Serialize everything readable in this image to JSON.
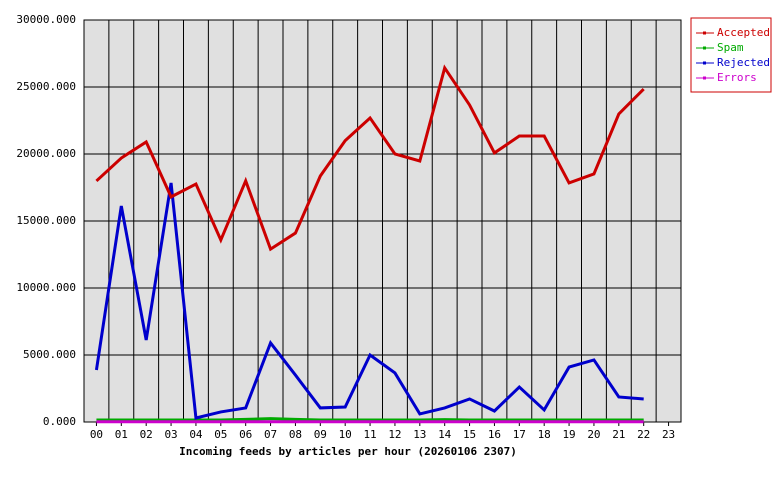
{
  "chart_data": {
    "type": "line",
    "xlabel": "Incoming feeds by articles per hour (20260106 2307)",
    "categories": [
      "00",
      "01",
      "02",
      "03",
      "04",
      "05",
      "06",
      "07",
      "08",
      "09",
      "10",
      "11",
      "12",
      "13",
      "14",
      "15",
      "16",
      "17",
      "18",
      "19",
      "20",
      "21",
      "22",
      "23"
    ],
    "series": [
      {
        "name": "Accepted",
        "color": "#cc0000",
        "values": [
          17990,
          19700,
          20900,
          16800,
          17760,
          13580,
          18000,
          12900,
          14100,
          18360,
          21000,
          22690,
          20000,
          19480,
          26420,
          23660,
          20080,
          21340,
          21340,
          17840,
          18510,
          22990,
          24850,
          null
        ]
      },
      {
        "name": "Spam",
        "color": "#00aa00",
        "values": [
          150,
          150,
          150,
          150,
          150,
          150,
          200,
          250,
          200,
          150,
          150,
          150,
          150,
          150,
          180,
          150,
          150,
          150,
          150,
          150,
          150,
          150,
          150,
          null
        ]
      },
      {
        "name": "Rejected",
        "color": "#0000cc",
        "values": [
          3880,
          16120,
          6120,
          17840,
          300,
          750,
          1050,
          5900,
          3500,
          1050,
          1120,
          5000,
          3660,
          600,
          1050,
          1720,
          820,
          2610,
          900,
          4100,
          4630,
          1870,
          1720,
          null
        ]
      },
      {
        "name": "Errors",
        "color": "#cc00cc",
        "values": [
          20,
          20,
          20,
          20,
          20,
          20,
          20,
          20,
          20,
          20,
          20,
          20,
          20,
          20,
          20,
          20,
          20,
          20,
          20,
          20,
          20,
          20,
          20,
          null
        ]
      }
    ],
    "ylim": [
      0,
      30000
    ],
    "yticks": [
      {
        "value": 0,
        "label": "0.000"
      },
      {
        "value": 5000,
        "label": "5000.000"
      },
      {
        "value": 10000,
        "label": "10000.000"
      },
      {
        "value": 15000,
        "label": "15000.000"
      },
      {
        "value": 20000,
        "label": "20000.000"
      },
      {
        "value": 25000,
        "label": "25000.000"
      },
      {
        "value": 30000,
        "label": "30000.000"
      }
    ],
    "grid": true,
    "legend": "top-right"
  }
}
